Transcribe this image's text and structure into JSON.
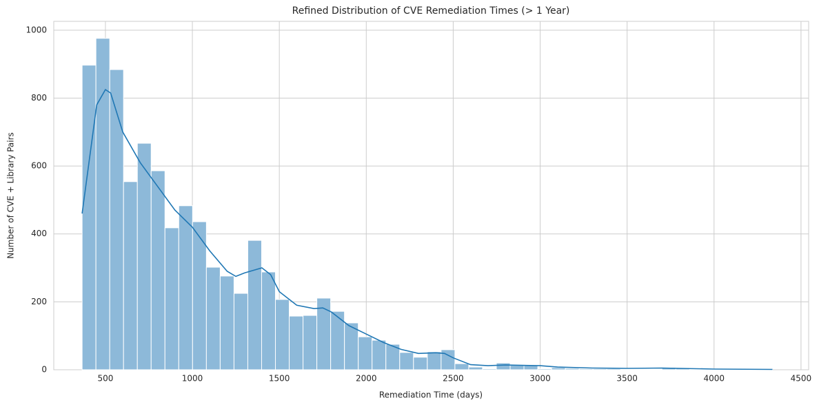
{
  "chart_data": {
    "type": "histogram",
    "title": "Refined Distribution of CVE Remediation Times (> 1 Year)",
    "x_label": "Remediation Time (days)",
    "y_label": "Number of CVE + Library Pairs",
    "bins": [
      366,
      445.4,
      524.8,
      604.2,
      683.6,
      763,
      842.4,
      921.8,
      1001.2,
      1080.6,
      1160,
      1239.4,
      1318.8,
      1398.2,
      1477.6,
      1557,
      1636.4,
      1715.8,
      1795.2,
      1874.6,
      1954,
      2033.4,
      2112.8,
      2192.2,
      2271.6,
      2351,
      2430.4,
      2509.8,
      2589.2,
      2668.6,
      2748,
      2827.4,
      2906.8,
      2986.2,
      3065.6,
      3145,
      3224.4,
      3303.8,
      3383.2,
      3462.6,
      3542,
      3621.4,
      3700.8,
      3780.2,
      3859.6,
      3939,
      4018.4,
      4097.8,
      4177.2,
      4256.6,
      4336
    ],
    "values": [
      897,
      976,
      884,
      554,
      667,
      586,
      418,
      483,
      436,
      302,
      276,
      225,
      381,
      288,
      207,
      158,
      160,
      211,
      172,
      138,
      97,
      87,
      75,
      51,
      37,
      53,
      59,
      18,
      8,
      3,
      20,
      13,
      12,
      3,
      6,
      4,
      3,
      3,
      3,
      2,
      2,
      2,
      7,
      4,
      2,
      1,
      1,
      1,
      1,
      1
    ],
    "color": "#8db9d9",
    "kde": {
      "color": "#1f77b4",
      "x": [
        366,
        450,
        500,
        530,
        600,
        700,
        800,
        900,
        1000,
        1100,
        1200,
        1250,
        1300,
        1400,
        1450,
        1500,
        1600,
        1700,
        1750,
        1800,
        1900,
        2000,
        2100,
        2200,
        2300,
        2400,
        2450,
        2500,
        2600,
        2700,
        2800,
        3000,
        3100,
        3300,
        3500,
        3700,
        3800,
        4000,
        4336
      ],
      "y": [
        460,
        780,
        825,
        815,
        700,
        610,
        540,
        470,
        420,
        350,
        290,
        275,
        285,
        300,
        280,
        230,
        190,
        180,
        182,
        170,
        130,
        105,
        80,
        60,
        48,
        50,
        48,
        35,
        15,
        12,
        14,
        12,
        8,
        5,
        4,
        5,
        4,
        2,
        1
      ]
    },
    "xlim": [
      203,
      4544
    ],
    "ylim": [
      0,
      1026
    ],
    "xticks": [
      500,
      1000,
      1500,
      2000,
      2500,
      3000,
      3500,
      4000,
      4500
    ],
    "yticks": [
      0,
      200,
      400,
      600,
      800,
      1000
    ],
    "grid": true
  }
}
